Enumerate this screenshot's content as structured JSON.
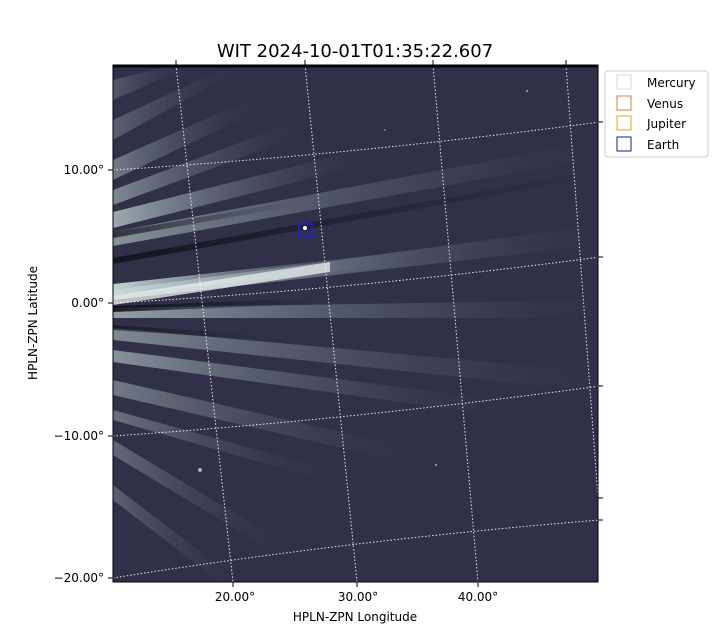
{
  "chart_data": {
    "type": "image",
    "title": "WIT 2024-10-01T01:35:22.607",
    "xlabel": "HPLN-ZPN Longitude",
    "ylabel": "HPLN-ZPN Latitude",
    "x_ticks": [
      "20.00°",
      "30.00°",
      "40.00°"
    ],
    "y_ticks": [
      "10.00°",
      "0.00°",
      "−10.00°",
      "−20.00°"
    ],
    "grid": true,
    "legend_position": "upper-right-outside",
    "legend": [
      {
        "name": "Mercury",
        "color": "#d9d9d9"
      },
      {
        "name": "Venus",
        "color": "#e07b39"
      },
      {
        "name": "Jupiter",
        "color": "#e6a817"
      },
      {
        "name": "Earth",
        "color": "#1a1a80"
      }
    ],
    "markers": [
      {
        "name": "Earth",
        "lon": 25.8,
        "lat": 5.4,
        "color": "#1f1fd6"
      }
    ],
    "colors": {
      "background": "#2e2e45",
      "streamer": "#c8dcd8",
      "grid": "#ffffff"
    }
  }
}
